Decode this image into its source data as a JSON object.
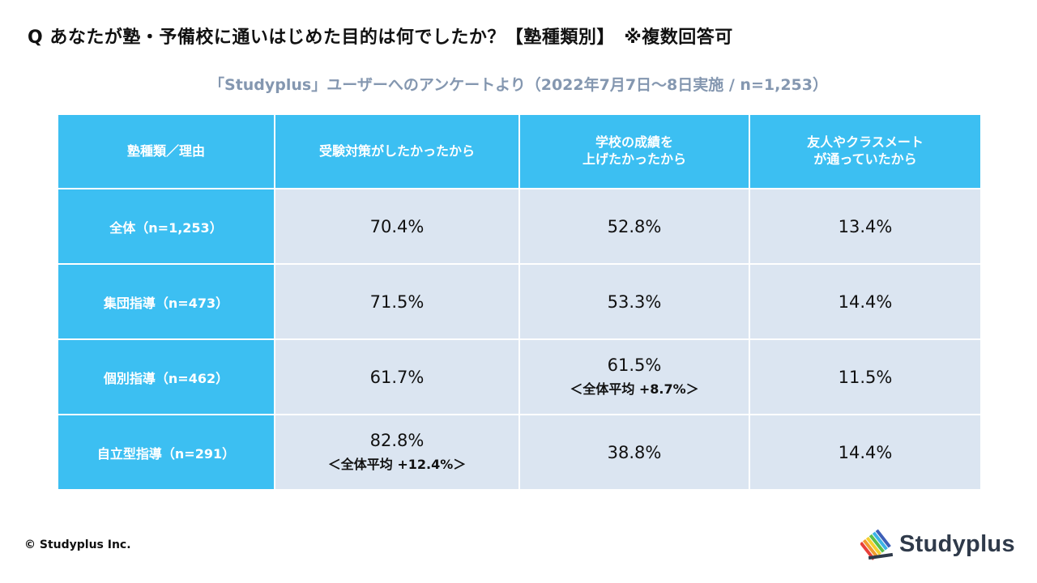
{
  "title": "Q あなたが塾・予備校に通いはじめた目的は何でしたか？【塾種類別】　※複数回答可",
  "subtitle": "「Studyplus」ユーザーへのアンケートより（2022年7月7日〜8日実施 / n=1,253）",
  "table": {
    "corner": "塾種類／理由",
    "columns": [
      {
        "lines": [
          "受験対策がしたかったから"
        ]
      },
      {
        "lines": [
          "学校の成績を",
          "上げたかったから"
        ]
      },
      {
        "lines": [
          "友人やクラスメート",
          "が通っていたから"
        ]
      }
    ],
    "rows": [
      {
        "label": "全体（n=1,253）",
        "cells": [
          {
            "value": "70.4%"
          },
          {
            "value": "52.8%"
          },
          {
            "value": "13.4%"
          }
        ]
      },
      {
        "label": "集団指導（n=473）",
        "cells": [
          {
            "value": "71.5%"
          },
          {
            "value": "53.3%"
          },
          {
            "value": "14.4%"
          }
        ]
      },
      {
        "label": "個別指導（n=462）",
        "cells": [
          {
            "value": "61.7%"
          },
          {
            "value": "61.5%",
            "note": "＜全体平均 +8.7%＞"
          },
          {
            "value": "11.5%"
          }
        ]
      },
      {
        "label": "自立型指導（n=291）",
        "cells": [
          {
            "value": "82.8%",
            "note": "＜全体平均 +12.4%＞"
          },
          {
            "value": "38.8%"
          },
          {
            "value": "14.4%"
          }
        ]
      }
    ]
  },
  "footer": {
    "copyright": "© Studyplus Inc.",
    "logo_text": "Studyplus"
  },
  "colors": {
    "header_bg": "#3cbff2",
    "cell_bg": "#dbe5f1",
    "highlight": "#e3161c",
    "subtitle": "#8497b0"
  }
}
